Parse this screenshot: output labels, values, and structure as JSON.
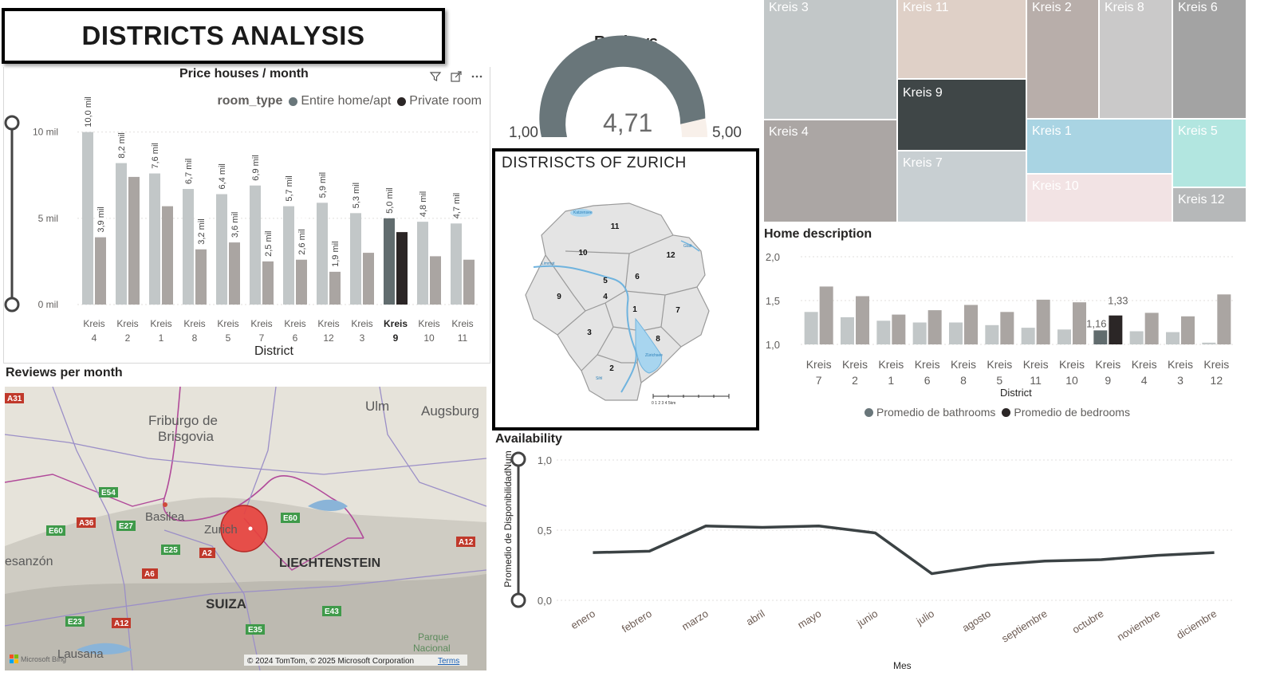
{
  "page_title": "DISTRICTS ANALYSIS",
  "icons": [
    "filter-icon",
    "focus-mode-icon",
    "more-options-icon"
  ],
  "colors": {
    "entire_home": "#c2c7c8",
    "private_room": "#aaa5a2",
    "highlight_entire": "#616c6e",
    "highlight_private": "#2b2626",
    "gauge_fill": "#69767a",
    "gauge_rest": "#f8f0ea",
    "line": "#3b4244",
    "map_bubble": "#e8403c"
  },
  "price_chart": {
    "title": "Price houses / month",
    "legend_title": "room_type",
    "legend": [
      {
        "name": "Entire home/apt",
        "color": "#69767a"
      },
      {
        "name": "Private room",
        "color": "#2b2626"
      }
    ],
    "xlabel": "District",
    "y_ticks": [
      "10 mil",
      "5 mil",
      "0 mil"
    ]
  },
  "reviews_gauge": {
    "title": "Reviews",
    "min_label": "1,00",
    "max_label": "5,00",
    "value_label": "4,71",
    "min": 1,
    "max": 5,
    "value": 4.71
  },
  "zurich_map": {
    "title": "DISTRISCTS OF ZURICH",
    "district_numbers": [
      "11",
      "12",
      "10",
      "6",
      "5",
      "4",
      "9",
      "1",
      "7",
      "3",
      "8",
      "2"
    ],
    "water_labels": [
      "Katzensee",
      "Limmat",
      "Zürichsee",
      "Sihl",
      "Glatt"
    ],
    "scale_label": "0 1 2 3 4 5km"
  },
  "treemap": {
    "tiles": [
      {
        "label": "Kreis 3",
        "color": "#c2c7c8"
      },
      {
        "label": "Kreis 11",
        "color": "#dfd0c7"
      },
      {
        "label": "Kreis 2",
        "color": "#b8aeaa"
      },
      {
        "label": "Kreis 8",
        "color": "#cac9c9"
      },
      {
        "label": "Kreis 6",
        "color": "#a3a3a3"
      },
      {
        "label": "Kreis 4",
        "color": "#aba6a4"
      },
      {
        "label": "Kreis 9",
        "color": "#3f4647"
      },
      {
        "label": "Kreis 1",
        "color": "#a9d4e3"
      },
      {
        "label": "Kreis 5",
        "color": "#b2e6e0"
      },
      {
        "label": "Kreis 7",
        "color": "#c8cfd2"
      },
      {
        "label": "Kreis 10",
        "color": "#f2e3e4"
      },
      {
        "label": "Kreis 12",
        "color": "#b6b8b9"
      }
    ]
  },
  "home_chart": {
    "title": "Home description",
    "xlabel": "District",
    "y_ticks": [
      "2,0",
      "1,5",
      "1,0"
    ],
    "legend": [
      {
        "name": "Promedio de bathrooms",
        "color": "#69767a"
      },
      {
        "name": "Promedio de bedrooms",
        "color": "#2b2626"
      }
    ],
    "label_a": "1,16",
    "label_b": "1,33"
  },
  "availability_chart": {
    "title": "Availability",
    "ylabel": "Promedio de DisponibilidadNum",
    "xlabel": "Mes",
    "y_ticks": [
      "1,0",
      "0,5",
      "0,0"
    ]
  },
  "reviews_map": {
    "title": "Reviews per month",
    "place_labels": [
      "Ulm",
      "Augsburg",
      "Friburgo de",
      "Brisgovia",
      "Basilea",
      "Zurich",
      "LIECHTENSTEIN",
      "SUIZA",
      "esanzón",
      "Lausana",
      "Parque",
      "Nacional"
    ],
    "road_labels": [
      "A31",
      "E54",
      "E60",
      "A36",
      "E27",
      "E25",
      "A2",
      "A6",
      "E60",
      "A12",
      "E43",
      "E23",
      "A12",
      "E35"
    ],
    "attribution": "© 2024 TomTom, © 2025 Microsoft Corporation",
    "terms": "Terms",
    "brand": "Microsoft Bing"
  },
  "chart_data": [
    {
      "type": "bar",
      "title": "Price houses / month",
      "xlabel": "District",
      "ylabel": "",
      "categories": [
        "Kreis 4",
        "Kreis 2",
        "Kreis 1",
        "Kreis 8",
        "Kreis 5",
        "Kreis 7",
        "Kreis 6",
        "Kreis 12",
        "Kreis 3",
        "Kreis 9",
        "Kreis 10",
        "Kreis 11"
      ],
      "series": [
        {
          "name": "Entire home/apt",
          "values": [
            10.0,
            8.2,
            7.6,
            6.7,
            6.4,
            6.9,
            5.7,
            5.9,
            5.3,
            5.0,
            4.8,
            4.7
          ],
          "labels": [
            "10,0 mil",
            "8,2 mil",
            "7,6 mil",
            "6,7 mil",
            "6,4 mil",
            "6,9 mil",
            "5,7 mil",
            "5,9 mil",
            "5,3 mil",
            "5,0 mil",
            "4,8 mil",
            "4,7 mil"
          ]
        },
        {
          "name": "Private room",
          "values": [
            3.9,
            7.4,
            5.7,
            3.2,
            3.6,
            2.5,
            2.6,
            1.9,
            3.0,
            4.2,
            2.8,
            2.6
          ],
          "labels": [
            "3,9 mil",
            "",
            "",
            "3,2 mil",
            "3,6 mil",
            "2,5 mil",
            "2,6 mil",
            "1,9 mil",
            "",
            "",
            "",
            ""
          ]
        }
      ],
      "units": "mil",
      "ylim": [
        0,
        11
      ],
      "highlight_category": "Kreis 9",
      "legend_position": "top-right",
      "grid": true
    },
    {
      "type": "bar",
      "title": "Home description",
      "xlabel": "District",
      "ylabel": "",
      "categories": [
        "Kreis 7",
        "Kreis 2",
        "Kreis 1",
        "Kreis 6",
        "Kreis 8",
        "Kreis 5",
        "Kreis 11",
        "Kreis 10",
        "Kreis 9",
        "Kreis 4",
        "Kreis 3",
        "Kreis 12"
      ],
      "series": [
        {
          "name": "Promedio de bathrooms",
          "values": [
            1.37,
            1.31,
            1.27,
            1.25,
            1.25,
            1.22,
            1.19,
            1.17,
            1.16,
            1.15,
            1.14,
            1.02
          ]
        },
        {
          "name": "Promedio de bedrooms",
          "values": [
            1.66,
            1.55,
            1.34,
            1.39,
            1.45,
            1.37,
            1.51,
            1.48,
            1.33,
            1.36,
            1.32,
            1.57
          ]
        }
      ],
      "ylim": [
        1.0,
        2.0
      ],
      "highlight_category": "Kreis 9",
      "legend_position": "bottom",
      "grid": true
    },
    {
      "type": "line",
      "title": "Availability",
      "xlabel": "Mes",
      "ylabel": "Promedio de DisponibilidadNum",
      "x": [
        "enero",
        "febrero",
        "marzo",
        "abril",
        "mayo",
        "junio",
        "julio",
        "agosto",
        "septiembre",
        "octubre",
        "noviembre",
        "diciembre"
      ],
      "series": [
        {
          "name": "",
          "values": [
            0.34,
            0.35,
            0.53,
            0.52,
            0.53,
            0.48,
            0.19,
            0.25,
            0.28,
            0.29,
            0.32,
            0.34
          ]
        }
      ],
      "ylim": [
        0.0,
        1.0
      ],
      "grid": true
    },
    {
      "type": "treemap",
      "title": "",
      "categories": [
        "Kreis 3",
        "Kreis 4",
        "Kreis 11",
        "Kreis 9",
        "Kreis 7",
        "Kreis 2",
        "Kreis 8",
        "Kreis 6",
        "Kreis 1",
        "Kreis 10",
        "Kreis 5",
        "Kreis 12"
      ],
      "values": [
        10.0,
        8.7,
        5.4,
        4.7,
        5.3,
        4.7,
        4.4,
        4.4,
        3.4,
        2.8,
        2.6,
        1.3
      ]
    }
  ]
}
